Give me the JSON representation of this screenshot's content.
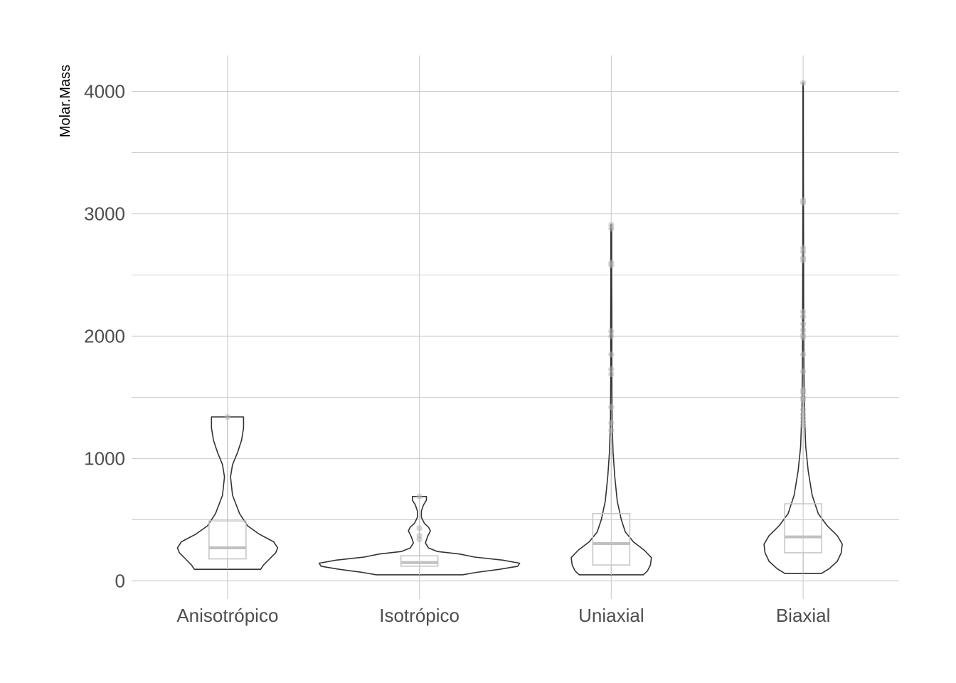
{
  "chart_data": {
    "type": "violin",
    "title": "",
    "xlabel": "",
    "ylabel": "Molar.Mass",
    "ylim": [
      -150,
      4300
    ],
    "yticks": [
      0,
      1000,
      2000,
      3000,
      4000
    ],
    "grid": true,
    "categories": [
      "Anisotrópico",
      "Isotrópico",
      "Uniaxial",
      "Biaxial"
    ],
    "colors": {
      "violin_stroke": "#333333",
      "box_stroke": "#c6c6c6",
      "median": "#c0c0c0",
      "points": "#b3b3b3",
      "grid": "#d0d0d0"
    },
    "groups": [
      {
        "name": "Anisotrópico",
        "box": {
          "q1": 180,
          "median": 270,
          "q3": 490,
          "whisker_low": 95,
          "whisker_high": 1340
        },
        "points": [
          1340
        ],
        "violin": [
          [
            95,
            0.33
          ],
          [
            130,
            0.36
          ],
          [
            180,
            0.42
          ],
          [
            230,
            0.48
          ],
          [
            270,
            0.5
          ],
          [
            320,
            0.46
          ],
          [
            380,
            0.32
          ],
          [
            450,
            0.2
          ],
          [
            550,
            0.12
          ],
          [
            700,
            0.05
          ],
          [
            850,
            0.03
          ],
          [
            950,
            0.05
          ],
          [
            1050,
            0.1
          ],
          [
            1150,
            0.14
          ],
          [
            1250,
            0.16
          ],
          [
            1340,
            0.16
          ]
        ]
      },
      {
        "name": "Isotrópico",
        "box": {
          "q1": 120,
          "median": 150,
          "q3": 205,
          "whisker_low": 50,
          "whisker_high": 690
        },
        "points": [
          690,
          430,
          370,
          340
        ],
        "violin": [
          [
            50,
            0.43
          ],
          [
            70,
            0.57
          ],
          [
            95,
            0.8
          ],
          [
            120,
            0.98
          ],
          [
            145,
            1.0
          ],
          [
            170,
            0.83
          ],
          [
            195,
            0.55
          ],
          [
            220,
            0.4
          ],
          [
            240,
            0.18
          ],
          [
            270,
            0.09
          ],
          [
            310,
            0.06
          ],
          [
            360,
            0.08
          ],
          [
            410,
            0.11
          ],
          [
            440,
            0.09
          ],
          [
            470,
            0.05
          ],
          [
            520,
            0.02
          ],
          [
            570,
            0.02
          ],
          [
            620,
            0.04
          ],
          [
            660,
            0.07
          ],
          [
            690,
            0.07
          ]
        ]
      },
      {
        "name": "Uniaxial",
        "box": {
          "q1": 130,
          "median": 305,
          "q3": 550,
          "whisker_low": 50,
          "whisker_high": 1160
        },
        "points": [
          2910,
          2880,
          2600,
          2580,
          2040,
          2000,
          1850,
          1730,
          1690,
          1420,
          1290,
          1230
        ],
        "violin": [
          [
            50,
            0.32
          ],
          [
            80,
            0.36
          ],
          [
            130,
            0.39
          ],
          [
            190,
            0.4
          ],
          [
            250,
            0.33
          ],
          [
            320,
            0.22
          ],
          [
            400,
            0.14
          ],
          [
            500,
            0.1
          ],
          [
            650,
            0.06
          ],
          [
            850,
            0.035
          ],
          [
            1050,
            0.018
          ],
          [
            1300,
            0.008
          ],
          [
            1700,
            0.005
          ],
          [
            2100,
            0.006
          ],
          [
            2500,
            0.004
          ],
          [
            2910,
            0.004
          ]
        ]
      },
      {
        "name": "Biaxial",
        "box": {
          "q1": 230,
          "median": 360,
          "q3": 630,
          "whisker_low": 60,
          "whisker_high": 1230
        },
        "points": [
          4070,
          3110,
          3090,
          2720,
          2690,
          2640,
          2620,
          2200,
          2160,
          2100,
          2050,
          2010,
          1990,
          1850,
          1710,
          1560,
          1540,
          1500,
          1480,
          1400,
          1360,
          1330,
          1300,
          1270
        ],
        "violin": [
          [
            60,
            0.18
          ],
          [
            100,
            0.26
          ],
          [
            160,
            0.34
          ],
          [
            230,
            0.38
          ],
          [
            300,
            0.39
          ],
          [
            370,
            0.34
          ],
          [
            450,
            0.24
          ],
          [
            550,
            0.15
          ],
          [
            700,
            0.09
          ],
          [
            900,
            0.05
          ],
          [
            1100,
            0.025
          ],
          [
            1400,
            0.012
          ],
          [
            1800,
            0.007
          ],
          [
            2300,
            0.005
          ],
          [
            2800,
            0.004
          ],
          [
            3300,
            0.0025
          ],
          [
            3800,
            0.002
          ],
          [
            4070,
            0.002
          ]
        ]
      }
    ]
  }
}
